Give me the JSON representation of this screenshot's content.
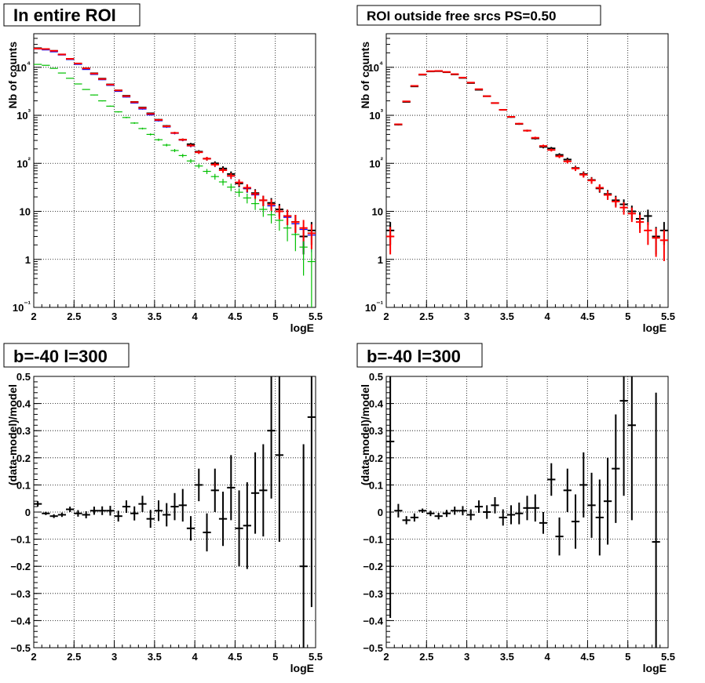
{
  "chart_data": [
    {
      "type": "scatter",
      "title": "In entire ROI",
      "xlabel": "logE",
      "ylabel": "Nb of counts",
      "xlim": [
        2,
        5.5
      ],
      "ylim": [
        0.1,
        50000
      ],
      "yscale": "log",
      "grid": true,
      "xticks": [
        "2",
        "2.5",
        "3",
        "3.5",
        "4",
        "4.5",
        "5",
        "5.5"
      ],
      "yticks": [
        "10⁻¹",
        "1",
        "10",
        "10²",
        "10³",
        "10⁴"
      ],
      "x": [
        2.05,
        2.15,
        2.25,
        2.35,
        2.45,
        2.55,
        2.65,
        2.75,
        2.85,
        2.95,
        3.05,
        3.15,
        3.25,
        3.35,
        3.45,
        3.55,
        3.65,
        3.75,
        3.85,
        3.95,
        4.05,
        4.15,
        4.25,
        4.35,
        4.45,
        4.55,
        4.65,
        4.75,
        4.85,
        4.95,
        5.05,
        5.15,
        5.25,
        5.35,
        5.45
      ],
      "series": [
        {
          "color": "#000000",
          "values": [
            25000,
            24000,
            22000,
            18500,
            15000,
            12000,
            9500,
            7500,
            5800,
            4400,
            3300,
            2550,
            1900,
            1450,
            1100,
            810,
            600,
            430,
            310,
            250,
            175,
            125,
            100,
            78,
            60,
            38,
            30,
            24,
            17,
            15,
            11,
            8,
            6,
            3,
            4
          ]
        },
        {
          "color": "#0000ff",
          "values": [
            24000,
            23000,
            21000,
            18000,
            14500,
            11500,
            9000,
            7100,
            5500,
            4200,
            3150,
            2400,
            1800,
            1350,
            1020,
            770,
            570,
            420,
            305,
            230,
            170,
            125,
            93,
            72,
            54,
            40,
            30,
            22,
            17,
            13,
            10,
            7.5,
            5.5,
            4.2,
            3.2
          ]
        },
        {
          "color": "#00c000",
          "values": [
            11500,
            11000,
            9500,
            7600,
            5900,
            4500,
            3450,
            2650,
            2000,
            1550,
            1180,
            900,
            690,
            530,
            400,
            310,
            240,
            185,
            145,
            112,
            88,
            68,
            53,
            41,
            32,
            25,
            19,
            14.5,
            11,
            8.5,
            6.5,
            4.5,
            3.3,
            1.8,
            0.9
          ]
        },
        {
          "color": "#ff0000",
          "values": [
            24500,
            24000,
            22000,
            18500,
            15000,
            12000,
            9500,
            7400,
            5700,
            4350,
            3300,
            2500,
            1880,
            1420,
            1070,
            800,
            590,
            430,
            310,
            235,
            170,
            125,
            94,
            72,
            55,
            40,
            31,
            23,
            17,
            14,
            10,
            8,
            6,
            4.5,
            3.5
          ]
        }
      ]
    },
    {
      "type": "scatter",
      "title": "ROI outside free srcs PS=0.50",
      "xlabel": "logE",
      "ylabel": "Nb of counts",
      "xlim": [
        2,
        5.5
      ],
      "ylim": [
        0.1,
        50000
      ],
      "yscale": "log",
      "grid": true,
      "xticks": [
        "2",
        "2.5",
        "3",
        "3.5",
        "4",
        "4.5",
        "5",
        "5.5"
      ],
      "yticks": [
        "10⁻¹",
        "1",
        "10",
        "10²",
        "10³",
        "10⁴"
      ],
      "x": [
        2.05,
        2.15,
        2.25,
        2.35,
        2.45,
        2.55,
        2.65,
        2.75,
        2.85,
        2.95,
        3.05,
        3.15,
        3.25,
        3.35,
        3.45,
        3.55,
        3.65,
        3.75,
        3.85,
        3.95,
        4.05,
        4.15,
        4.25,
        4.35,
        4.45,
        4.55,
        4.65,
        4.75,
        4.85,
        4.95,
        5.05,
        5.15,
        5.25,
        5.35,
        5.45
      ],
      "series": [
        {
          "color": "#000000",
          "values": [
            4,
            640,
            1900,
            4000,
            7000,
            8200,
            8300,
            7900,
            7100,
            6000,
            4700,
            3400,
            2500,
            1800,
            1300,
            920,
            660,
            480,
            330,
            220,
            205,
            150,
            120,
            80,
            60,
            45,
            30,
            23,
            17,
            14,
            10,
            7,
            8,
            3,
            4
          ]
        },
        {
          "color": "#ff0000",
          "values": [
            3,
            650,
            1950,
            4100,
            7100,
            8300,
            8400,
            8000,
            7200,
            6100,
            4800,
            3500,
            2500,
            1800,
            1300,
            930,
            670,
            480,
            340,
            230,
            190,
            140,
            110,
            78,
            58,
            44,
            31,
            22,
            16,
            12,
            9,
            6,
            4,
            2.8,
            2.5
          ]
        }
      ]
    },
    {
      "type": "scatter",
      "title": "b=-40 l=300",
      "xlabel": "logE",
      "ylabel": "(data-model)/model",
      "xlim": [
        2,
        5.5
      ],
      "ylim": [
        -0.5,
        0.5
      ],
      "grid": true,
      "xticks": [
        "2",
        "2.5",
        "3",
        "3.5",
        "4",
        "4.5",
        "5",
        "5.5"
      ],
      "yticks": [
        "−0.5",
        "−0.4",
        "−0.3",
        "−0.2",
        "−0.1",
        "0",
        "0.1",
        "0.2",
        "0.3",
        "0.4",
        "0.5"
      ],
      "x": [
        2.05,
        2.15,
        2.25,
        2.35,
        2.45,
        2.55,
        2.65,
        2.75,
        2.85,
        2.95,
        3.05,
        3.15,
        3.25,
        3.35,
        3.45,
        3.55,
        3.65,
        3.75,
        3.85,
        3.95,
        4.05,
        4.15,
        4.25,
        4.35,
        4.45,
        4.55,
        4.65,
        4.75,
        4.85,
        4.95,
        5.05,
        5.15,
        5.25,
        5.35,
        5.45
      ],
      "series": [
        {
          "color": "#000000",
          "values": [
            0.03,
            -0.005,
            -0.015,
            -0.01,
            0.01,
            -0.005,
            -0.01,
            0.005,
            0.005,
            0.005,
            -0.015,
            0.02,
            -0.005,
            0.03,
            -0.025,
            0.005,
            -0.01,
            0.02,
            0.025,
            -0.06,
            0.1,
            -0.075,
            0.08,
            -0.025,
            0.09,
            -0.06,
            -0.05,
            0.07,
            0.08,
            0.3,
            0.21,
            0.0,
            0.0,
            -0.2,
            0.35
          ],
          "errors": [
            0.01,
            0.006,
            0.007,
            0.008,
            0.01,
            0.012,
            0.013,
            0.015,
            0.016,
            0.018,
            0.02,
            0.023,
            0.026,
            0.03,
            0.033,
            0.038,
            0.043,
            0.05,
            0.06,
            0.045,
            0.06,
            0.07,
            0.08,
            0.1,
            0.12,
            0.14,
            0.16,
            0.15,
            0.17,
            0.25,
            0.32,
            0.0,
            0.0,
            0.45,
            0.7
          ]
        }
      ]
    },
    {
      "type": "scatter",
      "title": "b=-40 l=300",
      "xlabel": "logE",
      "ylabel": "(data-model)/model",
      "xlim": [
        2,
        5.5
      ],
      "ylim": [
        -0.5,
        0.5
      ],
      "grid": true,
      "xticks": [
        "2",
        "2.5",
        "3",
        "3.5",
        "4",
        "4.5",
        "5",
        "5.5"
      ],
      "yticks": [
        "−0.5",
        "−0.4",
        "−0.3",
        "−0.2",
        "−0.1",
        "0",
        "0.1",
        "0.2",
        "0.3",
        "0.4",
        "0.5"
      ],
      "x": [
        2.05,
        2.15,
        2.25,
        2.35,
        2.45,
        2.55,
        2.65,
        2.75,
        2.85,
        2.95,
        3.05,
        3.15,
        3.25,
        3.35,
        3.45,
        3.55,
        3.65,
        3.75,
        3.85,
        3.95,
        4.05,
        4.15,
        4.25,
        4.35,
        4.45,
        4.55,
        4.65,
        4.75,
        4.85,
        4.95,
        5.05,
        5.15,
        5.25,
        5.35,
        5.45
      ],
      "series": [
        {
          "color": "#000000",
          "values": [
            0.26,
            0.005,
            -0.03,
            -0.02,
            0.005,
            -0.005,
            -0.015,
            -0.005,
            0.005,
            0.005,
            -0.01,
            0.02,
            0.0,
            0.025,
            -0.02,
            -0.01,
            -0.005,
            0.015,
            0.015,
            -0.04,
            0.12,
            -0.09,
            0.08,
            -0.035,
            0.1,
            0.025,
            -0.02,
            0.04,
            0.16,
            0.41,
            0.32,
            0.0,
            0.0,
            -0.11,
            0.0
          ],
          "errors": [
            0.65,
            0.025,
            0.015,
            0.015,
            0.008,
            0.01,
            0.012,
            0.013,
            0.015,
            0.017,
            0.02,
            0.023,
            0.025,
            0.03,
            0.03,
            0.035,
            0.04,
            0.045,
            0.05,
            0.04,
            0.06,
            0.07,
            0.08,
            0.1,
            0.12,
            0.12,
            0.14,
            0.16,
            0.2,
            0.35,
            0.35,
            0.0,
            0.0,
            0.55,
            0.0
          ]
        }
      ]
    }
  ]
}
